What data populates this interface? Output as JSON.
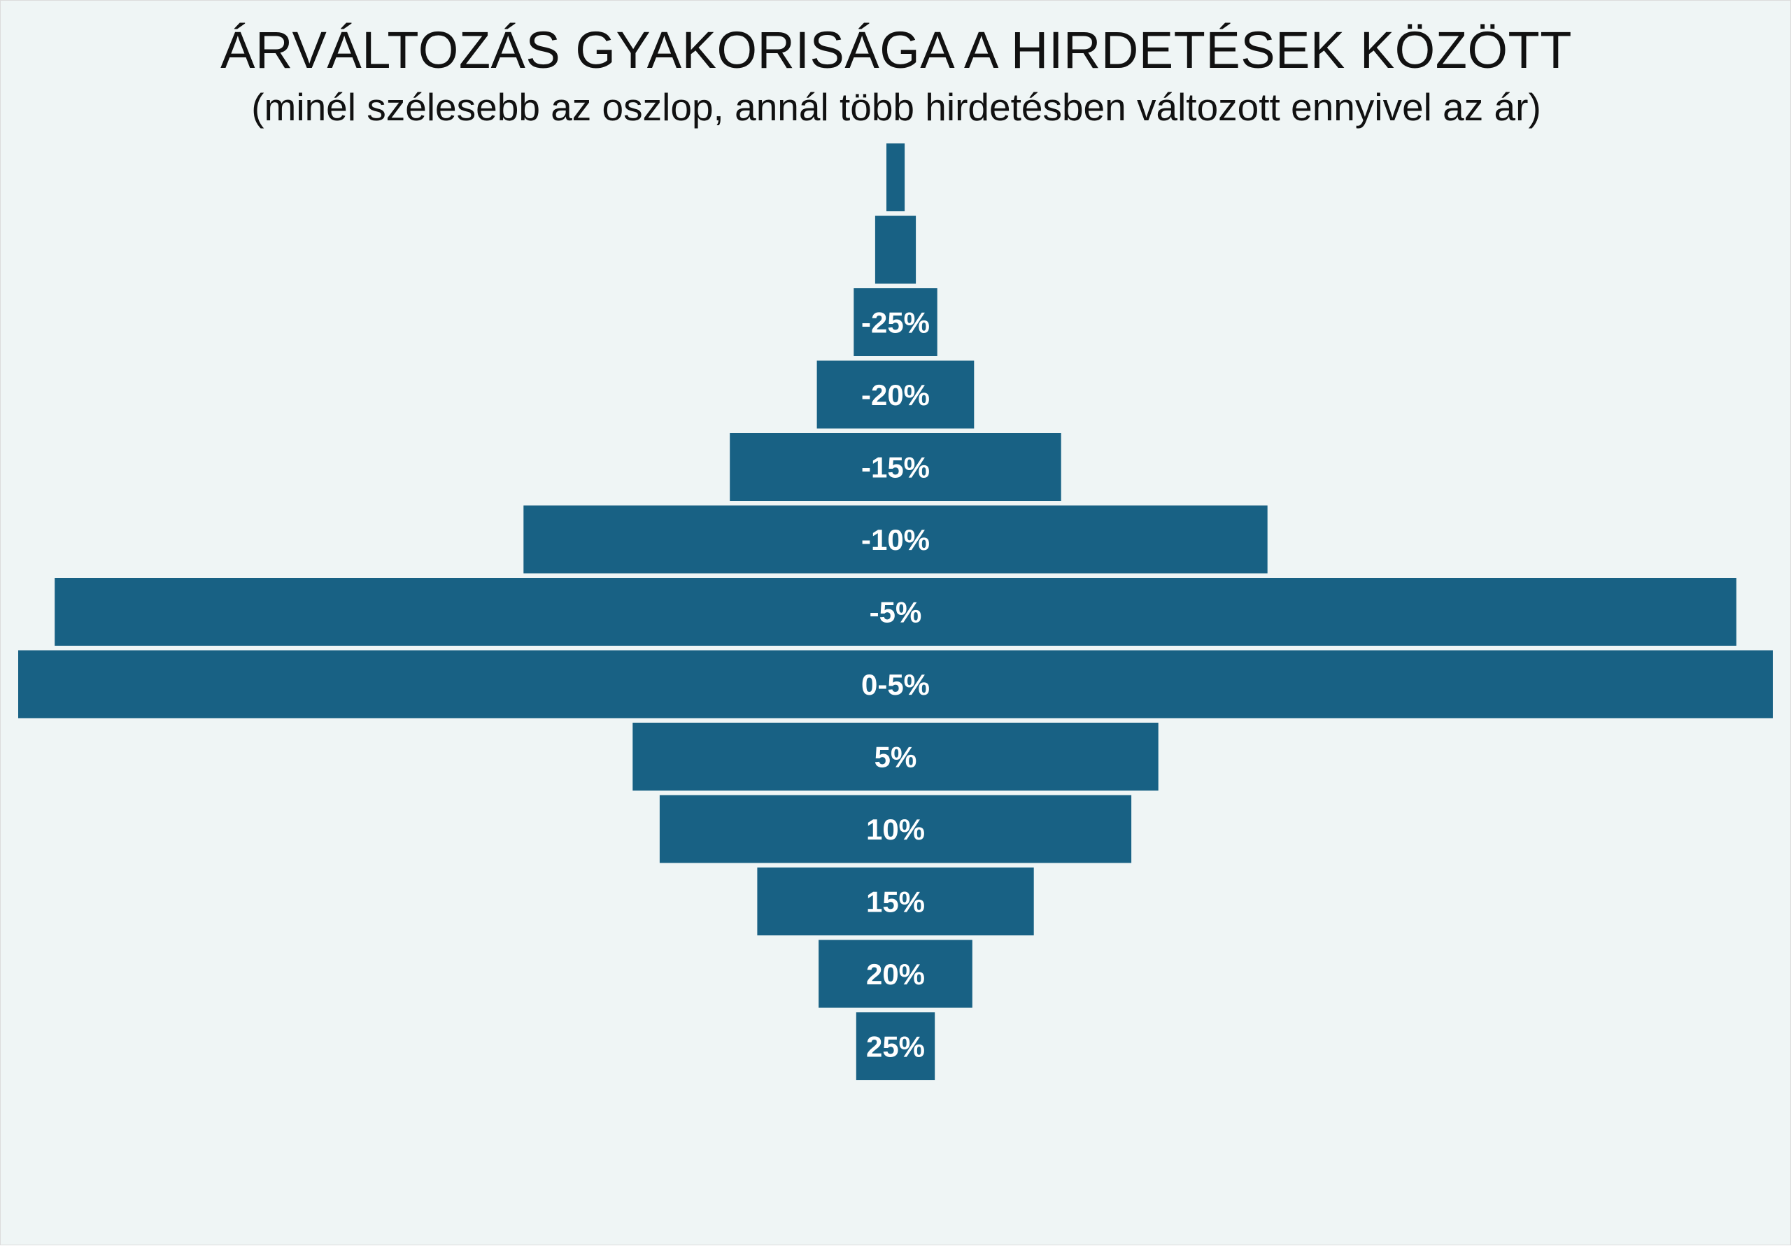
{
  "title": "ÁRVÁLTOZÁS GYAKORISÁGA A HIRDETÉSEK KÖZÖTT",
  "subtitle": "(minél szélesebb az oszlop, annál több hirdetésben változott ennyivel az ár)",
  "colors": {
    "background": "#eff5f5",
    "bar": "#186184",
    "label": "#ffffff"
  },
  "chart_data": {
    "type": "bar",
    "orientation": "horizontal-centered",
    "title": "ÁRVÁLTOZÁS GYAKORISÁGA A HIRDETÉSEK KÖZÖTT",
    "subtitle": "(minél szélesebb az oszlop, annál több hirdetésben változott ennyivel az ár)",
    "categories": [
      "",
      "",
      "-25%",
      "-20%",
      "-15%",
      "-10%",
      "-5%",
      "0-5%",
      "5%",
      "10%",
      "15%",
      "20%",
      "25%"
    ],
    "values": [
      2.6,
      5.8,
      11.9,
      22.4,
      47.2,
      106.0,
      239.6,
      250.0,
      74.9,
      67.2,
      39.4,
      21.9,
      11.2
    ],
    "value_unit": "relative frequency (widest bar = 250)",
    "xlim": [
      0,
      250
    ],
    "grid": false,
    "legend": "none"
  }
}
